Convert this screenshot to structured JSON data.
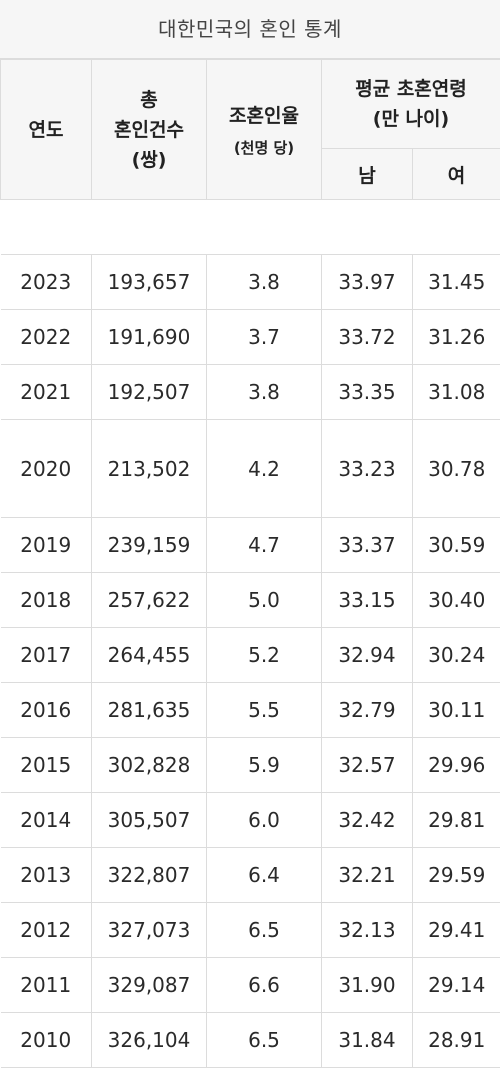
{
  "caption": "대한민국의 혼인 통계",
  "headers": {
    "year": "연도",
    "total_line1": "총",
    "total_line2": "혼인건수",
    "total_line3": "(쌍)",
    "rate_line1": "조혼인율",
    "rate_line2": "(천명 당)",
    "age_line1": "평균 초혼연령",
    "age_line2": "(만 나이)",
    "male": "남",
    "female": "여"
  },
  "rows": [
    {
      "year": "2023",
      "total": "193,657",
      "rate": "3.8",
      "male": "33.97",
      "female": "31.45"
    },
    {
      "year": "2022",
      "total": "191,690",
      "rate": "3.7",
      "male": "33.72",
      "female": "31.26"
    },
    {
      "year": "2021",
      "total": "192,507",
      "rate": "3.8",
      "male": "33.35",
      "female": "31.08"
    },
    {
      "year": "2020",
      "total": "213,502",
      "rate": "4.2",
      "male": "33.23",
      "female": "30.78"
    },
    {
      "year": "2019",
      "total": "239,159",
      "rate": "4.7",
      "male": "33.37",
      "female": "30.59"
    },
    {
      "year": "2018",
      "total": "257,622",
      "rate": "5.0",
      "male": "33.15",
      "female": "30.40"
    },
    {
      "year": "2017",
      "total": "264,455",
      "rate": "5.2",
      "male": "32.94",
      "female": "30.24"
    },
    {
      "year": "2016",
      "total": "281,635",
      "rate": "5.5",
      "male": "32.79",
      "female": "30.11"
    },
    {
      "year": "2015",
      "total": "302,828",
      "rate": "5.9",
      "male": "32.57",
      "female": "29.96"
    },
    {
      "year": "2014",
      "total": "305,507",
      "rate": "6.0",
      "male": "32.42",
      "female": "29.81"
    },
    {
      "year": "2013",
      "total": "322,807",
      "rate": "6.4",
      "male": "32.21",
      "female": "29.59"
    },
    {
      "year": "2012",
      "total": "327,073",
      "rate": "6.5",
      "male": "32.13",
      "female": "29.41"
    },
    {
      "year": "2011",
      "total": "329,087",
      "rate": "6.6",
      "male": "31.90",
      "female": "29.14"
    },
    {
      "year": "2010",
      "total": "326,104",
      "rate": "6.5",
      "male": "31.84",
      "female": "28.91"
    }
  ]
}
